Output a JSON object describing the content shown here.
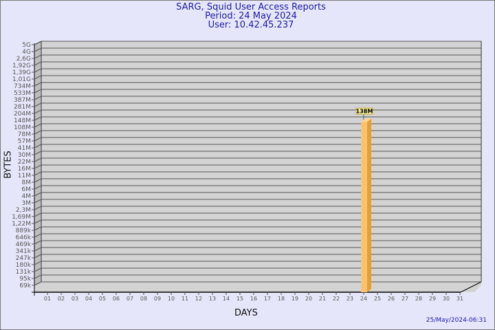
{
  "header": {
    "title": "SARG, Squid User Access Reports",
    "period": "Period: 24 May 2024",
    "user": "User: 10.42.45.237"
  },
  "footer": {
    "timestamp": "25/May/2024-06:31"
  },
  "colors": {
    "background": "#e6e6fa",
    "plot": "#d3d3d3",
    "bar": "#ffc26b",
    "bar_side": "#e0a040",
    "text": "#1a1aa0"
  },
  "chart_data": {
    "type": "bar",
    "xlabel": "DAYS",
    "ylabel": "BYTES",
    "y_scale": "log",
    "grid": true,
    "style": "3d",
    "y_ticks": [
      "5G",
      "4G",
      "2,6G",
      "1,92G",
      "1,39G",
      "1,01G",
      "734M",
      "533M",
      "387M",
      "281M",
      "204M",
      "148M",
      "108M",
      "78M",
      "57M",
      "41M",
      "30M",
      "22M",
      "16M",
      "11M",
      "8M",
      "6M",
      "4M",
      "3M",
      "2,3M",
      "1,69M",
      "1,22M",
      "889k",
      "646k",
      "469k",
      "341k",
      "247k",
      "180k",
      "131k",
      "95k",
      "69k"
    ],
    "y_tick_values": [
      5000000000.0,
      4000000000.0,
      2600000000.0,
      1920000000.0,
      1390000000.0,
      1010000000.0,
      734000000.0,
      533000000.0,
      387000000.0,
      281000000.0,
      204000000.0,
      148000000.0,
      108000000.0,
      78000000.0,
      57000000.0,
      41000000.0,
      30000000.0,
      22000000.0,
      16000000.0,
      11000000.0,
      8000000.0,
      6000000.0,
      4000000.0,
      3000000.0,
      2300000.0,
      1690000.0,
      1220000.0,
      889000.0,
      646000.0,
      469000.0,
      341000.0,
      247000.0,
      180000.0,
      131000.0,
      95000.0,
      69000.0
    ],
    "categories": [
      "01",
      "02",
      "03",
      "04",
      "05",
      "06",
      "07",
      "08",
      "09",
      "10",
      "11",
      "12",
      "13",
      "14",
      "15",
      "16",
      "17",
      "18",
      "19",
      "20",
      "21",
      "22",
      "23",
      "24",
      "25",
      "26",
      "27",
      "28",
      "29",
      "30",
      "31"
    ],
    "bars": [
      {
        "day": "24",
        "value": 138000000,
        "label": "138M"
      }
    ]
  }
}
